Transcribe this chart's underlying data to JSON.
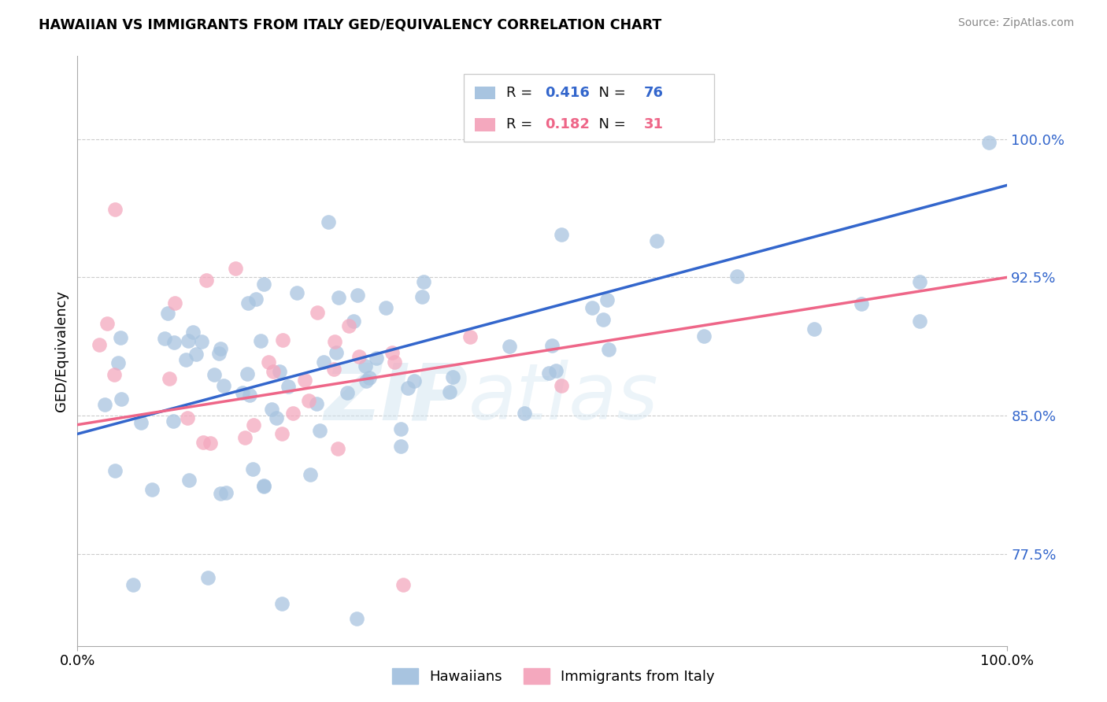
{
  "title": "HAWAIIAN VS IMMIGRANTS FROM ITALY GED/EQUIVALENCY CORRELATION CHART",
  "source": "Source: ZipAtlas.com",
  "ylabel": "GED/Equivalency",
  "xlim": [
    0.0,
    1.0
  ],
  "ylim": [
    0.725,
    1.045
  ],
  "yticks": [
    0.775,
    0.85,
    0.925,
    1.0
  ],
  "ytick_labels": [
    "77.5%",
    "85.0%",
    "92.5%",
    "100.0%"
  ],
  "xticks": [
    0.0,
    1.0
  ],
  "xtick_labels": [
    "0.0%",
    "100.0%"
  ],
  "blue_color": "#A8C4E0",
  "pink_color": "#F4A8BE",
  "blue_line_color": "#3366CC",
  "pink_line_color": "#EE6688",
  "hawaiians_label": "Hawaiians",
  "italy_label": "Immigrants from Italy",
  "watermark_zip": "ZIP",
  "watermark_atlas": "atlas",
  "blue_line_y_start": 0.84,
  "blue_line_y_end": 0.975,
  "pink_line_y_start": 0.845,
  "pink_line_y_end": 0.925,
  "r_blue": "0.416",
  "n_blue": "76",
  "r_pink": "0.182",
  "n_pink": "31"
}
